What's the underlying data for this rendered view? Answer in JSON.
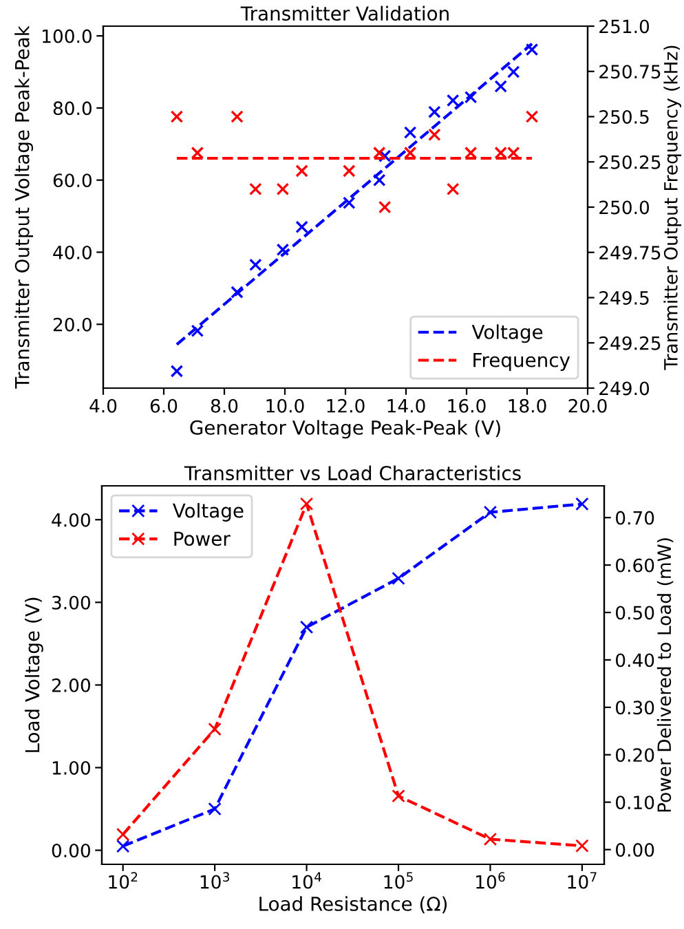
{
  "chart_data": [
    {
      "type": "scatter",
      "title": "Transmitter Validation",
      "xlabel": "Generator Voltage Peak-Peak (V)",
      "ylabel": "Transmitter Output Voltage Peak-Peak",
      "y2label": "Transmitter Output Frequency (kHz)",
      "xlim": [
        4,
        20
      ],
      "xticks": [
        {
          "value": 4,
          "label": "4.0"
        },
        {
          "value": 6,
          "label": "6.0"
        },
        {
          "value": 8,
          "label": "8.0"
        },
        {
          "value": 10,
          "label": "10.0"
        },
        {
          "value": 12,
          "label": "12.0"
        },
        {
          "value": 14,
          "label": "14.0"
        },
        {
          "value": 16,
          "label": "16.0"
        },
        {
          "value": 18,
          "label": "18.0"
        },
        {
          "value": 20,
          "label": "20.0"
        }
      ],
      "ylim": [
        2.3,
        102.7
      ],
      "yticks": [
        {
          "value": 20,
          "label": "20.0"
        },
        {
          "value": 40,
          "label": "40.0"
        },
        {
          "value": 60,
          "label": "60.0"
        },
        {
          "value": 80,
          "label": "80.0"
        },
        {
          "value": 100,
          "label": "100.0"
        }
      ],
      "y2lim": [
        249.0,
        251.0
      ],
      "y2ticks": [
        {
          "value": 249,
          "label": "249.0"
        },
        249.25,
        249.5,
        249.75,
        {
          "value": 250,
          "label": "250.0"
        },
        250.25,
        250.5,
        250.75,
        {
          "value": 251,
          "label": "251.0"
        }
      ],
      "grid": false,
      "legend": "bottom right",
      "series": [
        {
          "marker": "cross",
          "color": "#0000ff",
          "x": [
            6.43,
            7.11,
            8.42,
            9.03,
            9.93,
            10.56,
            12.12,
            13.12,
            13.3,
            14.14,
            14.94,
            15.55,
            16.14,
            17.13,
            17.55,
            18.16
          ],
          "values": [
            7.0,
            18.2,
            28.9,
            36.5,
            40.7,
            47.0,
            53.7,
            60.0,
            66.7,
            73.2,
            78.9,
            82.1,
            83.0,
            86.0,
            90.0,
            96.2
          ]
        },
        {
          "marker": "cross",
          "color": "#ff0000",
          "axis": "y2",
          "x": [
            6.43,
            7.11,
            8.42,
            9.03,
            9.93,
            10.56,
            12.12,
            13.12,
            13.3,
            14.14,
            14.94,
            15.55,
            16.14,
            17.13,
            17.55,
            18.16
          ],
          "values": [
            250.5,
            250.3,
            250.5,
            250.1,
            250.1,
            250.2,
            250.2,
            250.3,
            250.0,
            250.3,
            250.4,
            250.1,
            250.3,
            250.3,
            250.3,
            250.5
          ]
        },
        {
          "type": "line",
          "name": "Voltage",
          "line_style": "dashed",
          "marker": "none",
          "color": "#0000ff",
          "x": [
            6.43,
            18.16
          ],
          "values": [
            14.4,
            97.8
          ]
        },
        {
          "type": "line",
          "name": "Frequency",
          "line_style": "dashed",
          "marker": "none",
          "color": "#ff0000",
          "axis": "y2",
          "x": [
            6.43,
            18.16
          ],
          "values": [
            250.27,
            250.27
          ]
        }
      ]
    },
    {
      "type": "line",
      "title": "Transmitter vs Load Characteristics",
      "xlabel": "Load Resistance (Ω)",
      "ylabel": "Load Voltage (V)",
      "y2label": "Power Delivered to Load (mW)",
      "log": "x",
      "xlim": [
        58.9,
        17400000
      ],
      "xticks": [
        {
          "value": 100,
          "label": "10$^{2}$"
        },
        {
          "value": 1000,
          "label": "10$^{3}$"
        },
        {
          "value": 10000,
          "label": "10$^{4}$"
        },
        {
          "value": 100000,
          "label": "10$^{5}$"
        },
        {
          "value": 1000000,
          "label": "10$^{6}$"
        },
        {
          "value": 10000000,
          "label": "10$^{7}$"
        }
      ],
      "ylim": [
        -0.17,
        4.41
      ],
      "yticks": [
        {
          "value": 0,
          "label": "0.00"
        },
        {
          "value": 1,
          "label": "1.00"
        },
        {
          "value": 2,
          "label": "2.00"
        },
        {
          "value": 3,
          "label": "3.00"
        },
        {
          "value": 4,
          "label": "4.00"
        }
      ],
      "y2lim": [
        -0.031,
        0.767
      ],
      "y2ticks": [
        {
          "value": 0,
          "label": "0.00"
        },
        {
          "value": 0.1,
          "label": "0.10"
        },
        {
          "value": 0.2,
          "label": "0.20"
        },
        {
          "value": 0.3,
          "label": "0.30"
        },
        {
          "value": 0.4,
          "label": "0.40"
        },
        {
          "value": 0.5,
          "label": "0.50"
        },
        {
          "value": 0.6,
          "label": "0.60"
        },
        {
          "value": 0.7,
          "label": "0.70"
        }
      ],
      "grid": false,
      "legend": "top left",
      "series": [
        {
          "name": "Voltage",
          "line_style": "dashed",
          "marker": "cross",
          "color": "#0000ff",
          "x": [
            100,
            1000,
            10000,
            100000,
            1000000,
            10000000
          ],
          "values": [
            0.05,
            0.5,
            2.7,
            3.29,
            4.09,
            4.19
          ]
        },
        {
          "name": "Power",
          "line_style": "dashed",
          "marker": "cross",
          "color": "#ff0000",
          "axis": "y2",
          "x": [
            100,
            1000,
            10000,
            100000,
            1000000,
            10000000
          ],
          "values": [
            0.032,
            0.254,
            0.729,
            0.113,
            0.022,
            0.008
          ]
        }
      ]
    }
  ]
}
